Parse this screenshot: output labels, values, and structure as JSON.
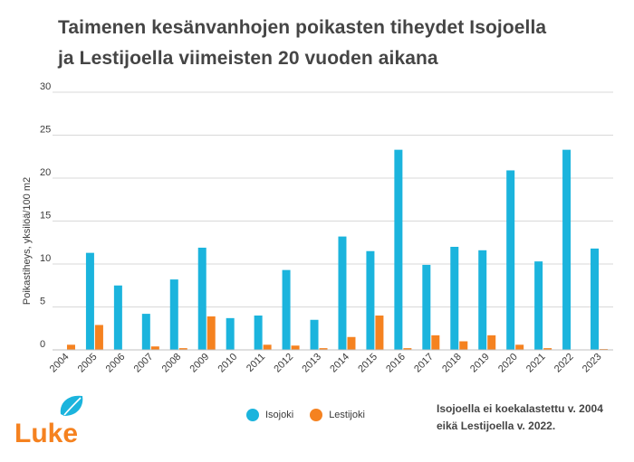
{
  "title": {
    "line1": "Taimenen kesänvanhojen poikasten tiheydet Isojoella",
    "line2": "ja Lestijoella viimeisten 20 vuoden aikana"
  },
  "legend": {
    "items": [
      {
        "label": "Isojoki",
        "color": "#1bb4dd"
      },
      {
        "label": "Lestijoki",
        "color": "#f58220"
      }
    ]
  },
  "note": {
    "line1": "Isojoella ei koekalastettu v. 2004",
    "line2": "eikä Lestijoella v. 2022."
  },
  "logo": {
    "text": "Luke",
    "color": "#f58220",
    "leaf_color": "#1bb4dd"
  },
  "chart_data": {
    "type": "bar",
    "title": "",
    "xlabel": "",
    "ylabel": "Poikastiheys, yksilöä/100 m2",
    "ylim": [
      0,
      30
    ],
    "yticks": [
      0,
      5,
      10,
      15,
      20,
      25,
      30
    ],
    "grid": true,
    "legend_position": "bottom-center",
    "categories": [
      "2004",
      "2005",
      "2006",
      "2007",
      "2008",
      "2009",
      "2010",
      "2011",
      "2012",
      "2013",
      "2014",
      "2015",
      "2016",
      "2017",
      "2018",
      "2019",
      "2020",
      "2021",
      "2022",
      "2023"
    ],
    "series": [
      {
        "name": "Isojoki",
        "color": "#1bb4dd",
        "values": [
          null,
          11.3,
          7.5,
          4.2,
          8.2,
          11.9,
          3.7,
          4.0,
          9.3,
          3.5,
          13.2,
          11.5,
          23.3,
          9.9,
          12.0,
          11.6,
          20.9,
          10.3,
          23.3,
          11.8
        ]
      },
      {
        "name": "Lestijoki",
        "color": "#f58220",
        "values": [
          0.6,
          2.9,
          0.0,
          0.4,
          0.2,
          3.9,
          0.0,
          0.6,
          0.5,
          0.2,
          1.5,
          4.0,
          0.2,
          1.7,
          1.0,
          1.7,
          0.6,
          0.2,
          null,
          0.1
        ]
      }
    ]
  }
}
